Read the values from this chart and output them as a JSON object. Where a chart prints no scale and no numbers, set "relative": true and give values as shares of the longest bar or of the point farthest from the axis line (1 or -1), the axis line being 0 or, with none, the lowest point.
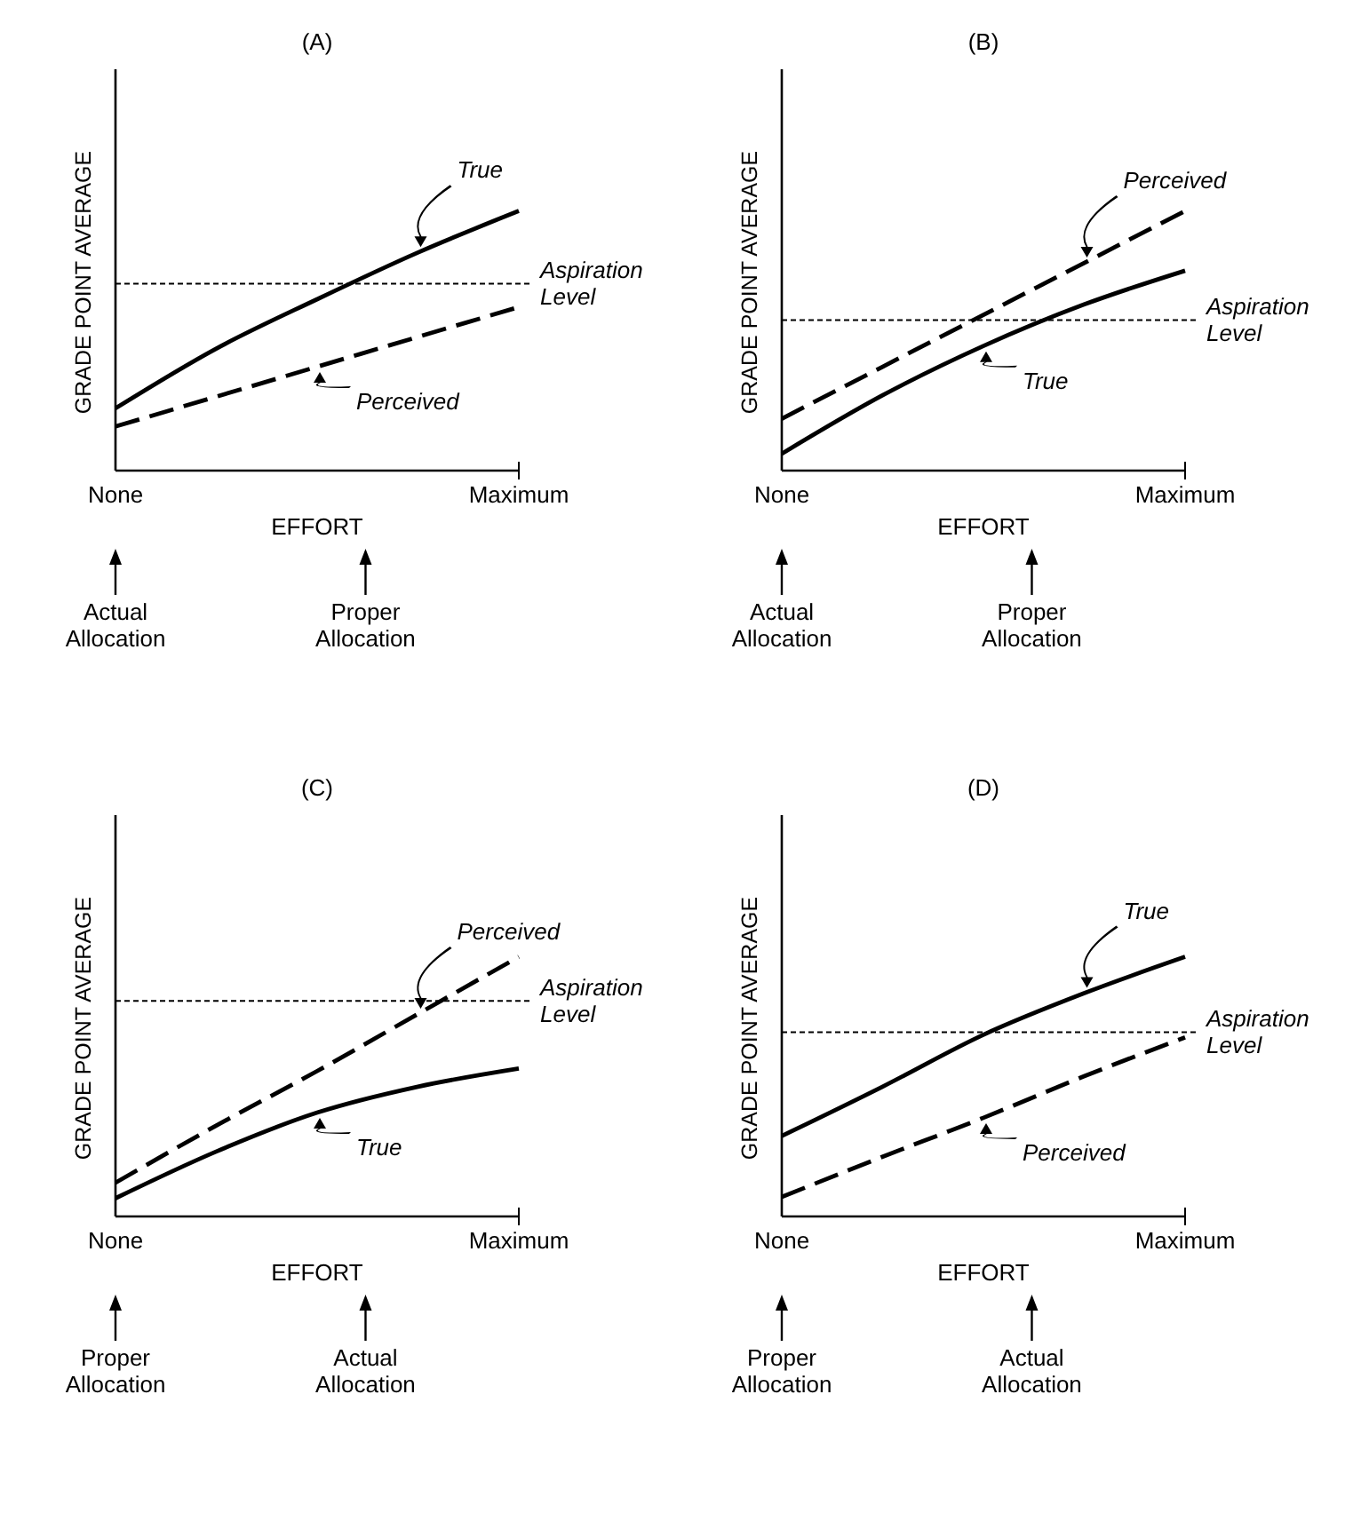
{
  "chart_data": [
    {
      "type": "line",
      "title": "(A)",
      "xlabel": "EFFORT",
      "ylabel": "GRADE POINT AVERAGE",
      "relative": true,
      "categories": [
        "None",
        null,
        null,
        null,
        "Maximum"
      ],
      "series": [
        {
          "name": "True",
          "color": "#000000",
          "line_style": "solid",
          "values": [
            0.24,
            0.47,
            0.66,
            0.84,
            1.0
          ]
        },
        {
          "name": "Perceived",
          "color": "#000000",
          "line_style": "dashed",
          "values": [
            0.17,
            0.285,
            0.4,
            0.515,
            0.63
          ]
        }
      ],
      "ref_lines": [
        {
          "axis": "y",
          "value": 0.72,
          "label": "Aspiration Level",
          "color": "#000000",
          "line_style": "dashed"
        }
      ],
      "annotations": [
        "Actual Allocation",
        "Proper Allocation"
      ]
    },
    {
      "type": "line",
      "title": "(B)",
      "xlabel": "EFFORT",
      "ylabel": "GRADE POINT AVERAGE",
      "relative": true,
      "categories": [
        "None",
        null,
        null,
        null,
        "Maximum"
      ],
      "series": [
        {
          "name": "Perceived",
          "color": "#000000",
          "line_style": "dashed",
          "values": [
            0.2,
            0.4,
            0.6,
            0.8,
            1.0
          ]
        },
        {
          "name": "True",
          "color": "#000000",
          "line_style": "solid",
          "values": [
            0.065,
            0.29,
            0.48,
            0.64,
            0.77
          ]
        }
      ],
      "ref_lines": [
        {
          "axis": "y",
          "value": 0.58,
          "label": "Aspiration Level",
          "color": "#000000",
          "line_style": "dashed"
        }
      ],
      "annotations": [
        "Actual Allocation",
        "Proper Allocation"
      ]
    },
    {
      "type": "line",
      "title": "(C)",
      "xlabel": "EFFORT",
      "ylabel": "GRADE POINT AVERAGE",
      "relative": true,
      "categories": [
        "None",
        null,
        null,
        null,
        "Maximum"
      ],
      "series": [
        {
          "name": "Perceived",
          "color": "#000000",
          "line_style": "dashed",
          "values": [
            0.13,
            0.35,
            0.56,
            0.78,
            1.0
          ]
        },
        {
          "name": "True",
          "color": "#000000",
          "line_style": "solid",
          "values": [
            0.07,
            0.25,
            0.4,
            0.5,
            0.57
          ]
        }
      ],
      "ref_lines": [
        {
          "axis": "y",
          "value": 0.83,
          "label": "Aspiration Level",
          "color": "#000000",
          "line_style": "dashed"
        }
      ],
      "annotations": [
        "Proper Allocation",
        "Actual Allocation"
      ]
    },
    {
      "type": "line",
      "title": "(D)",
      "xlabel": "EFFORT",
      "ylabel": "GRADE POINT AVERAGE",
      "relative": true,
      "categories": [
        "None",
        null,
        null,
        null,
        "Maximum"
      ],
      "series": [
        {
          "name": "True",
          "color": "#000000",
          "line_style": "solid",
          "values": [
            0.31,
            0.5,
            0.7,
            0.86,
            1.0
          ]
        },
        {
          "name": "Perceived",
          "color": "#000000",
          "line_style": "dashed",
          "values": [
            0.075,
            0.23,
            0.38,
            0.54,
            0.69
          ]
        }
      ],
      "ref_lines": [
        {
          "axis": "y",
          "value": 0.71,
          "label": "Aspiration Level",
          "color": "#000000",
          "line_style": "dashed"
        }
      ],
      "annotations": [
        "Proper Allocation",
        "Actual Allocation"
      ]
    }
  ]
}
